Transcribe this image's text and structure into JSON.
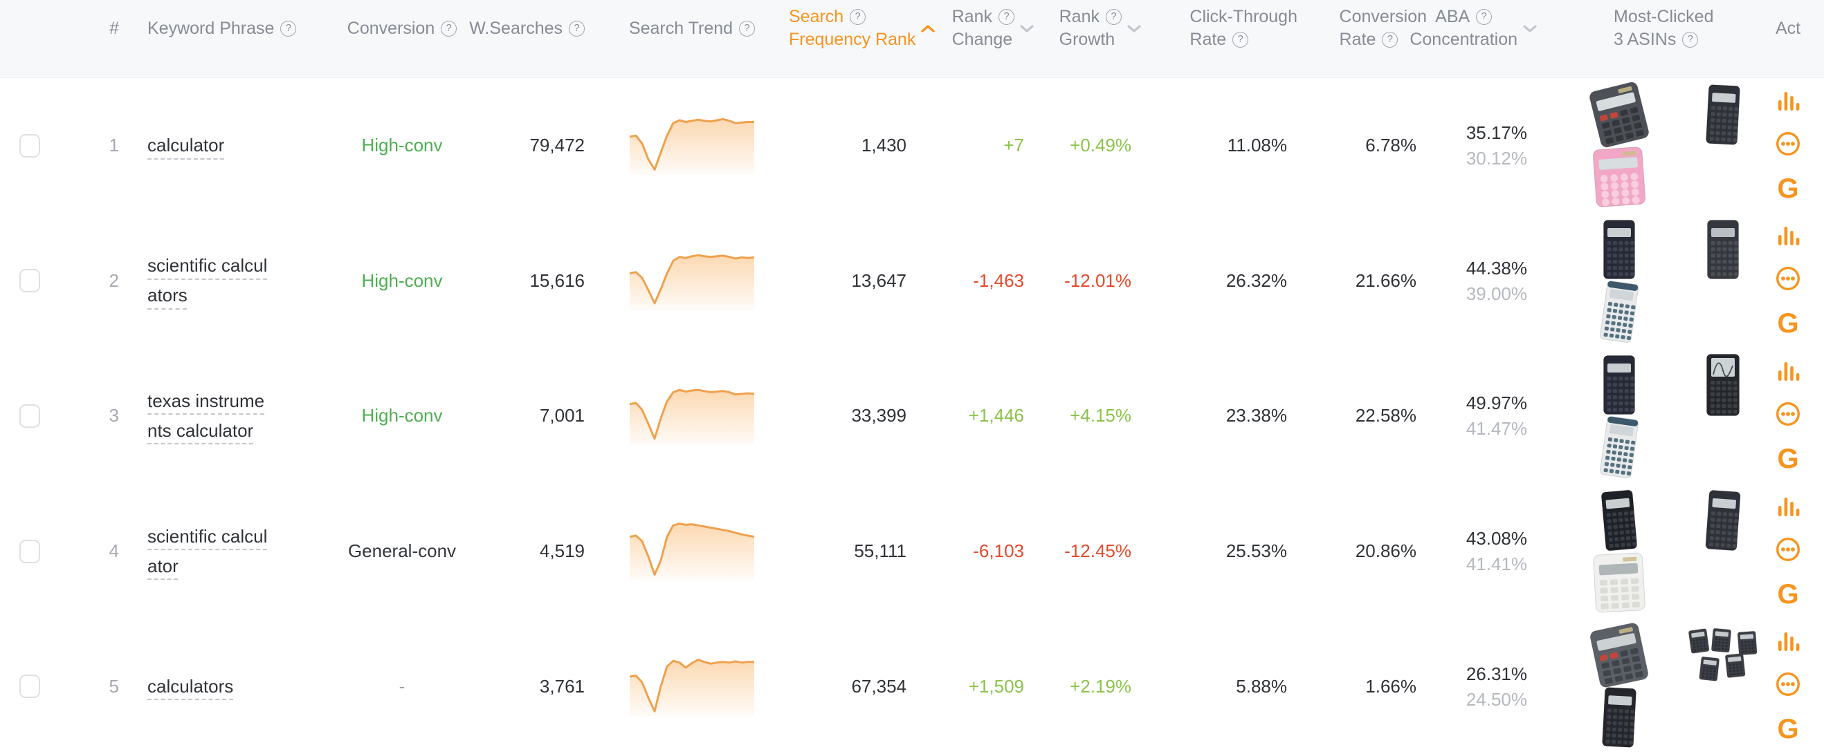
{
  "colors": {
    "accent_orange": "#f7941e",
    "trend_line": "#efa14d",
    "trend_fill": "#f7a448",
    "conv_high_green": "#4caf50",
    "positive_green": "#8bc34a",
    "negative_red": "#e5492c",
    "dark_text": "#2f3237",
    "gray_text": "#9ba0a8",
    "header_text": "#878b93",
    "header_bg": "#f7f8fa",
    "aba_secondary_text": "#b6b9bf"
  },
  "icons": {
    "help": "?",
    "google": "G"
  },
  "header": {
    "columns": [
      {
        "id": "check",
        "type": "checkbox"
      },
      {
        "id": "num",
        "label": "#"
      },
      {
        "id": "keyword",
        "label": "Keyword Phrase",
        "help": true
      },
      {
        "id": "conversion",
        "label": "Conversion",
        "help": true
      },
      {
        "id": "wsearches",
        "label": "W.Searches",
        "help": true
      },
      {
        "id": "trend",
        "label": "Search Trend",
        "help": true
      },
      {
        "id": "sfr",
        "line1": "Search",
        "line2": "Frequency Rank",
        "help_line": 1,
        "sort": "asc",
        "sort_active": true
      },
      {
        "id": "rank_change",
        "line1": "Rank",
        "line2": "Change",
        "help_line": 1,
        "sort": "desc"
      },
      {
        "id": "rank_growth",
        "line1": "Rank",
        "line2": "Growth",
        "help_line": 1,
        "sort": "desc"
      },
      {
        "id": "ctr",
        "line1": "Click-Through",
        "line2": "Rate",
        "help_line": 2
      },
      {
        "id": "conv_rate",
        "line1": "Conversion",
        "line2": "Rate",
        "help_line": 2
      },
      {
        "id": "aba",
        "line1": "ABA",
        "line2": "Concentration",
        "help_line": 1,
        "sort": "desc",
        "stack_align": "center"
      },
      {
        "id": "asins",
        "line1": "Most-Clicked",
        "line2": "3 ASINs",
        "help_line": 2
      },
      {
        "id": "act",
        "label": "Act"
      }
    ]
  },
  "row_actions": [
    {
      "name": "keyword-chart",
      "type": "bars"
    },
    {
      "name": "more-options",
      "type": "ellipsis"
    },
    {
      "name": "google-search",
      "type": "google"
    }
  ],
  "rows": [
    {
      "num": "1",
      "keyword": "calculator",
      "conversion": "High-conv",
      "conversion_type": "high",
      "w_searches": "79,472",
      "search_frequency_rank": "1,430",
      "rank_change": "+7",
      "rank_change_dir": "pos",
      "rank_growth": "+0.49%",
      "rank_growth_dir": "pos",
      "ctr": "11.08%",
      "conv_rate": "6.78%",
      "aba_primary": "35.17%",
      "aba_secondary": "30.12%",
      "trend": [
        40,
        38,
        52,
        80,
        98,
        68,
        38,
        16,
        11,
        14,
        12,
        10,
        12,
        13,
        11,
        9,
        12,
        16,
        15,
        14,
        14
      ],
      "asins": [
        {
          "label": "desktop-calculator-dark-gray",
          "variant": "basic",
          "body": "#4d5157",
          "keys": "#33363b",
          "screen": "#d7dcde",
          "accent": "#c2453a",
          "tilt": -14
        },
        {
          "label": "scientific-calculator-black",
          "variant": "scientific",
          "body": "#2e3138",
          "keys": "#44484f",
          "screen": "#c9ced1",
          "tilt": 3
        },
        {
          "label": "pink-calculator",
          "variant": "basic",
          "round": true,
          "body": "#f1a7c5",
          "keys": "#f8cfdf",
          "screen": "#d8dde0",
          "tilt": -4
        }
      ]
    },
    {
      "num": "2",
      "keyword": "scientific calculators",
      "conversion": "High-conv",
      "conversion_type": "high",
      "w_searches": "15,616",
      "search_frequency_rank": "13,647",
      "rank_change": "-1,463",
      "rank_change_dir": "neg",
      "rank_growth": "-12.01%",
      "rank_growth_dir": "neg",
      "ctr": "26.32%",
      "conv_rate": "21.66%",
      "aba_primary": "44.38%",
      "aba_secondary": "39.00%",
      "trend": [
        42,
        40,
        50,
        72,
        95,
        70,
        42,
        20,
        13,
        15,
        12,
        10,
        12,
        13,
        12,
        11,
        13,
        16,
        14,
        15,
        14
      ],
      "asins": [
        {
          "label": "scientific-calculator-dark-blue",
          "variant": "scientific",
          "body": "#262a36",
          "keys": "#3d4250",
          "screen": "#c9ced1",
          "tilt": 0
        },
        {
          "label": "handheld-scientific-calculator-black",
          "variant": "scientific",
          "body": "#34373d",
          "keys": "#4a4e55",
          "screen": "#b8bfc2",
          "tilt": 0
        },
        {
          "label": "scientific-calculator-blue-white",
          "variant": "scientific",
          "body": "#e8eaeb",
          "keys": "#54717f",
          "screen": "#cfd5d8",
          "band": "#3c586a",
          "tilt": 8
        }
      ]
    },
    {
      "num": "3",
      "keyword": "texas instruments calculator",
      "conversion": "High-conv",
      "conversion_type": "high",
      "w_searches": "7,001",
      "search_frequency_rank": "33,399",
      "rank_change": "+1,446",
      "rank_change_dir": "pos",
      "rank_growth": "+4.15%",
      "rank_growth_dir": "pos",
      "ctr": "23.38%",
      "conv_rate": "22.58%",
      "aba_primary": "49.97%",
      "aba_secondary": "41.47%",
      "trend": [
        35,
        33,
        45,
        70,
        96,
        60,
        30,
        14,
        10,
        13,
        11,
        10,
        12,
        14,
        13,
        12,
        14,
        18,
        17,
        16,
        17
      ],
      "asins": [
        {
          "label": "scientific-calculator-dark-blue",
          "variant": "scientific",
          "body": "#262a36",
          "keys": "#3d4250",
          "screen": "#c9ced1",
          "tilt": 0
        },
        {
          "label": "graphing-calculator-black",
          "variant": "graphing",
          "body": "#24262b",
          "keys": "#3c4046",
          "screen": "#ccd3d5",
          "tilt": 0
        },
        {
          "label": "scientific-calculator-blue-white",
          "variant": "scientific",
          "body": "#e8eaeb",
          "keys": "#54717f",
          "screen": "#cfd5d8",
          "band": "#3c586a",
          "tilt": 8
        }
      ]
    },
    {
      "num": "4",
      "keyword": "scientific calculator",
      "conversion": "General-conv",
      "conversion_type": "general",
      "w_searches": "4,519",
      "search_frequency_rank": "55,111",
      "rank_change": "-6,103",
      "rank_change_dir": "neg",
      "rank_growth": "-12.45%",
      "rank_growth_dir": "neg",
      "ctr": "25.53%",
      "conv_rate": "20.86%",
      "aba_primary": "43.08%",
      "aba_secondary": "41.41%",
      "trend": [
        30,
        28,
        38,
        65,
        97,
        72,
        30,
        10,
        7,
        9,
        8,
        10,
        12,
        14,
        16,
        18,
        20,
        23,
        26,
        28,
        30
      ],
      "asins": [
        {
          "label": "scientific-calculator-black",
          "variant": "scientific",
          "body": "#1e2127",
          "keys": "#383c43",
          "screen": "#c9ced1",
          "tilt": -5
        },
        {
          "label": "scientific-calculator-dark-gray",
          "variant": "scientific",
          "body": "#2e3138",
          "keys": "#45494f",
          "screen": "#c9ced1",
          "tilt": 4
        },
        {
          "label": "basic-calculator-white",
          "variant": "basic",
          "body": "#f0f0ee",
          "keys": "#dcdcd6",
          "screen": "#aeb6b8",
          "tilt": -3
        }
      ]
    },
    {
      "num": "5",
      "keyword": "calculators",
      "conversion": "-",
      "conversion_type": "none",
      "w_searches": "3,761",
      "search_frequency_rank": "67,354",
      "rank_change": "+1,509",
      "rank_change_dir": "pos",
      "rank_growth": "+2.19%",
      "rank_growth_dir": "pos",
      "ctr": "5.88%",
      "conv_rate": "1.66%",
      "aba_primary": "26.31%",
      "aba_secondary": "24.50%",
      "trend": [
        38,
        36,
        48,
        75,
        99,
        55,
        20,
        10,
        13,
        22,
        14,
        8,
        12,
        15,
        13,
        12,
        13,
        11,
        13,
        12,
        12
      ],
      "asins": [
        {
          "label": "desktop-calculator-gray",
          "variant": "basic",
          "body": "#5b5f66",
          "keys": "#3f434a",
          "screen": "#ccd2d4",
          "accent": "#c2453a",
          "tilt": -12
        },
        {
          "label": "calculator-multipack",
          "variant": "multipack",
          "body": "#3c3f45",
          "keys": "#2c2f34",
          "screen": "#c6cbce",
          "tilt": 0
        },
        {
          "label": "scientific-calculator-black",
          "variant": "scientific",
          "body": "#24262c",
          "keys": "#3b3f46",
          "screen": "#c9ced1",
          "tilt": 3
        }
      ]
    }
  ]
}
